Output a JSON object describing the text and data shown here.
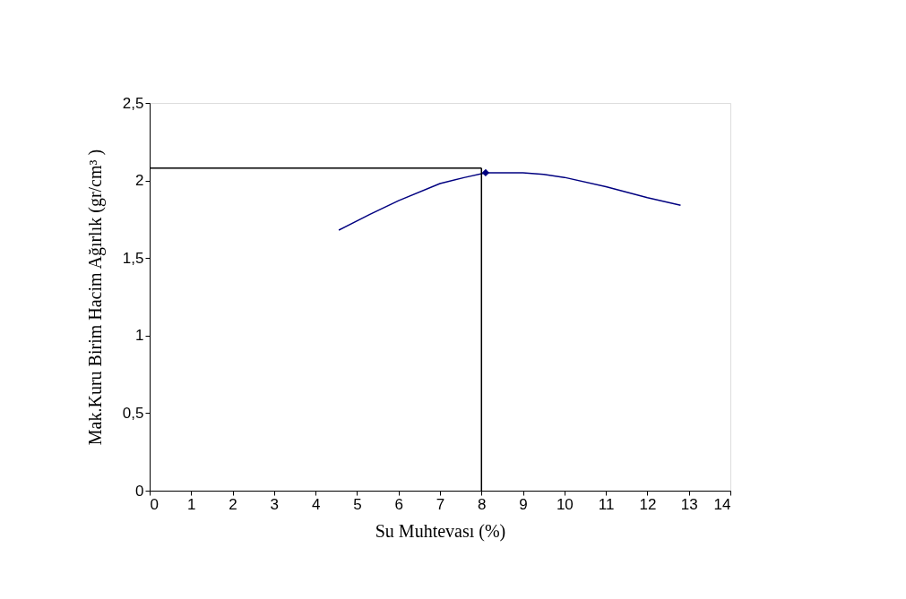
{
  "chart_data": {
    "type": "line",
    "xlabel": "Su Muhtevası (%)",
    "ylabel": "Mak.Kuru Birim Hacim Ağırlık (gr/cm³ )",
    "xlim": [
      0,
      14
    ],
    "xticks": [
      0,
      1,
      2,
      3,
      4,
      5,
      6,
      7,
      8,
      9,
      10,
      11,
      12,
      13,
      14
    ],
    "ylim": [
      0,
      2.5
    ],
    "yticks": [
      0,
      {
        "value": 0.5,
        "label": "0,5"
      },
      1,
      {
        "value": 1.5,
        "label": "1,5"
      },
      2,
      {
        "value": 2.5,
        "label": "2,5"
      }
    ],
    "grid": false,
    "series": [
      {
        "type": "line",
        "color": "#000080",
        "x": [
          4.56,
          5.3,
          6,
          7,
          7.6,
          8.1,
          8.5,
          9,
          9.5,
          10,
          11,
          12,
          12.8
        ],
        "values": [
          1.68,
          1.78,
          1.87,
          1.98,
          2.02,
          2.05,
          2.05,
          2.05,
          2.04,
          2.02,
          1.96,
          1.89,
          1.84
        ],
        "marker": "none"
      },
      {
        "type": "scatter",
        "color": "#000080",
        "x": [
          8.1
        ],
        "values": [
          2.05
        ],
        "marker": "diamond"
      }
    ],
    "ref_lines": [
      {
        "axis": "y",
        "value": 2.08,
        "color": "#000000",
        "line_style": "solid"
      },
      {
        "axis": "x",
        "value": 8.0,
        "color": "#000000",
        "line_style": "solid"
      }
    ]
  }
}
